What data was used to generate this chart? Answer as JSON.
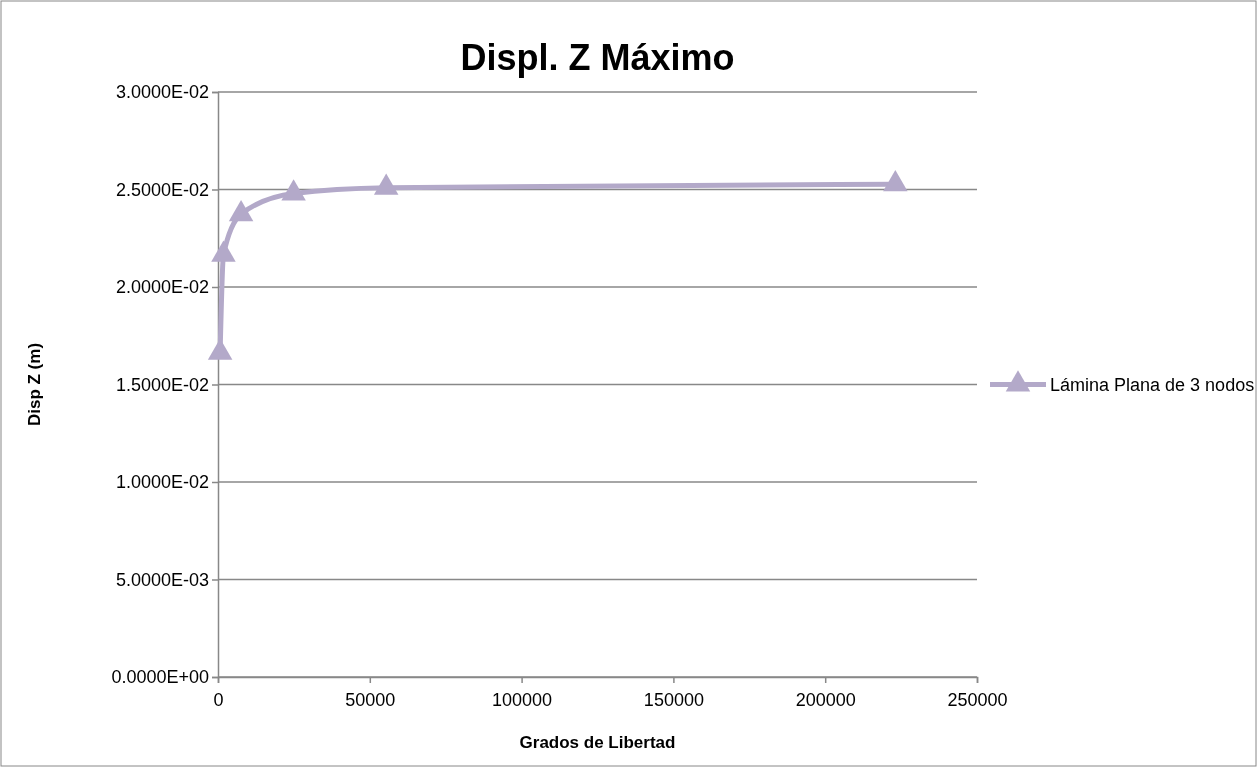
{
  "chart_data": {
    "type": "line",
    "title": "Displ. Z Máximo",
    "xlabel": "Grados de Libertad",
    "ylabel": "Disp Z (m)",
    "xlim": [
      0,
      250000
    ],
    "xticks": [
      0,
      50000,
      100000,
      150000,
      200000,
      250000
    ],
    "ylim": [
      0,
      0.03
    ],
    "yticks": [
      {
        "value": 0,
        "label": "0.0000E+00"
      },
      {
        "value": 0.005,
        "label": "5.0000E-03"
      },
      {
        "value": 0.01,
        "label": "1.0000E-02"
      },
      {
        "value": 0.015,
        "label": "1.5000E-02"
      },
      {
        "value": 0.02,
        "label": "2.0000E-02"
      },
      {
        "value": 0.025,
        "label": "2.5000E-02"
      },
      {
        "value": 0.03,
        "label": "3.0000E-02"
      }
    ],
    "grid": "y",
    "legend": "right",
    "marker": "triangle",
    "line_style": "solid",
    "series": [
      {
        "name": "Lámina Plana de 3 nodos",
        "color": "#b3a9c9",
        "x": [
          700,
          1800,
          7600,
          24900,
          55400,
          223100
        ],
        "values": [
          0.01663,
          0.02166,
          0.02374,
          0.0248,
          0.02509,
          0.02527
        ]
      }
    ]
  }
}
